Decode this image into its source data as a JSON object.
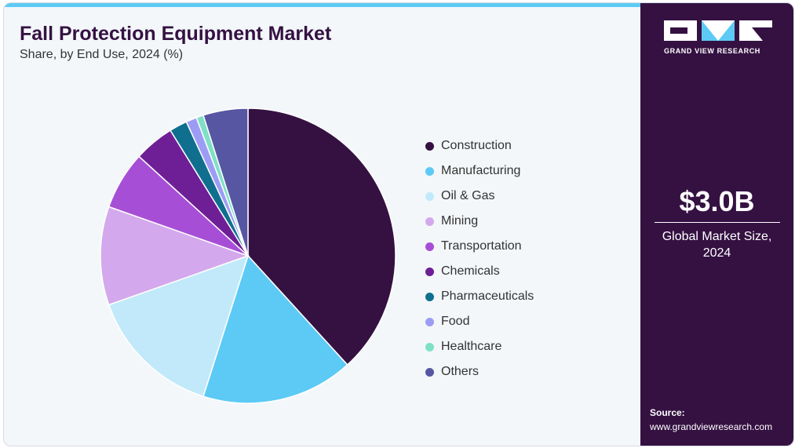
{
  "header": {
    "title": "Fall Protection Equipment Market",
    "subtitle": "Share, by End Use, 2024 (%)"
  },
  "brand": {
    "name": "GRAND VIEW RESEARCH",
    "logo_mark": "GVR"
  },
  "kpi": {
    "value": "$3.0B",
    "label_line1": "Global Market Size,",
    "label_line2": "2024"
  },
  "source": {
    "label": "Source:",
    "url": "www.grandviewresearch.com"
  },
  "colors": {
    "accent_bar": "#5ccaf5",
    "panel": "#351142",
    "background": "#f3f7fa"
  },
  "chart_data": {
    "type": "pie",
    "title": "Fall Protection Equipment Market",
    "subtitle": "Share, by End Use, 2024 (%)",
    "legend_position": "right",
    "start_angle": "12 o'clock, clockwise",
    "slices": [
      {
        "label": "Construction",
        "value": 39,
        "color": "#351142"
      },
      {
        "label": "Manufacturing",
        "value": 17,
        "color": "#5ccaf5"
      },
      {
        "label": "Oil & Gas",
        "value": 15,
        "color": "#c1e9fa"
      },
      {
        "label": "Mining",
        "value": 11,
        "color": "#d4a8ec"
      },
      {
        "label": "Transportation",
        "value": 6.5,
        "color": "#a64fd6"
      },
      {
        "label": "Chemicals",
        "value": 4.5,
        "color": "#6e1f96"
      },
      {
        "label": "Pharmaceuticals",
        "value": 2,
        "color": "#106f8e"
      },
      {
        "label": "Food",
        "value": 1.2,
        "color": "#9d9cf5"
      },
      {
        "label": "Healthcare",
        "value": 0.8,
        "color": "#7fe0c5"
      },
      {
        "label": "Others",
        "value": 5,
        "color": "#5656a3"
      }
    ]
  }
}
